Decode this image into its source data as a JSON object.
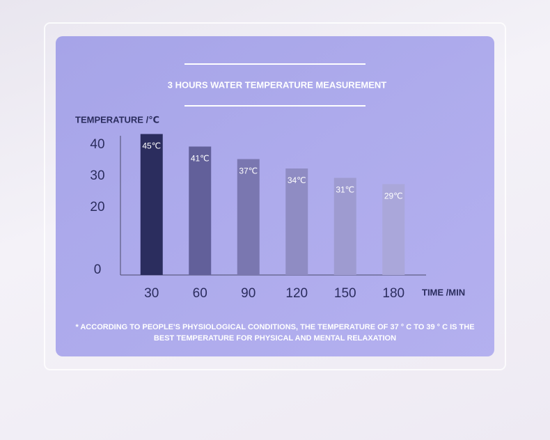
{
  "chart_data": {
    "type": "bar",
    "title": "3 HOURS WATER TEMPERATURE MEASUREMENT",
    "y_label": "TEMPERATURE /℃",
    "x_label": "TIME /MIN",
    "categories": [
      "30",
      "60",
      "90",
      "120",
      "150",
      "180"
    ],
    "values": [
      45,
      41,
      37,
      34,
      31,
      29
    ],
    "value_labels": [
      "45℃",
      "41℃",
      "37℃",
      "34℃",
      "31℃",
      "29℃"
    ],
    "colors": [
      "#2b2d5e",
      "#62609a",
      "#7a77b0",
      "#8f8cc3",
      "#9e9bd0",
      "#aaa7da"
    ],
    "ylim": [
      0,
      45
    ],
    "yticks": [
      0,
      20,
      30,
      40
    ],
    "note": "* ACCORDING TO PEOPLE'S PHYSIOLOGICAL CONDITIONS, THE TEMPERATURE OF 37 ° C TO 39 ° C IS THE BEST TEMPERATURE FOR PHYSICAL AND MENTAL RELAXATION"
  }
}
